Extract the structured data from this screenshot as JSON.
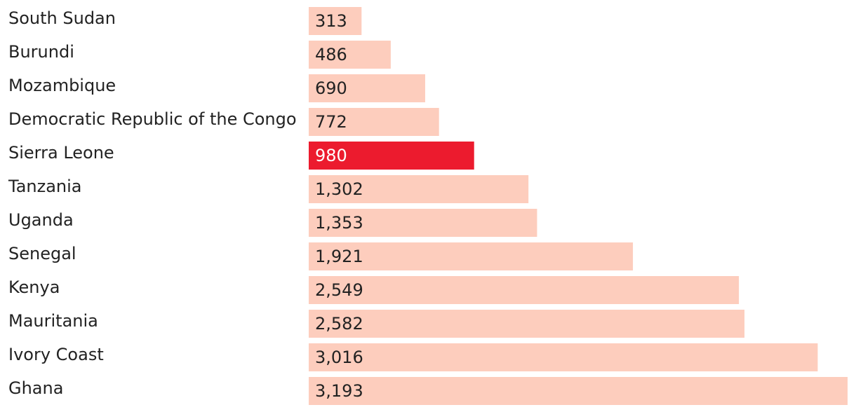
{
  "chart_data": {
    "type": "bar",
    "orientation": "horizontal",
    "categories": [
      "South Sudan",
      "Burundi",
      "Mozambique",
      "Democratic Republic of the Congo",
      "Sierra Leone",
      "Tanzania",
      "Uganda",
      "Senegal",
      "Kenya",
      "Mauritania",
      "Ivory Coast",
      "Ghana"
    ],
    "values": [
      313,
      486,
      690,
      772,
      980,
      1302,
      1353,
      1921,
      2549,
      2582,
      3016,
      3193
    ],
    "value_labels": [
      "313",
      "486",
      "690",
      "772",
      "980",
      "1,302",
      "1,353",
      "1,921",
      "2,549",
      "2,582",
      "3,016",
      "3,193"
    ],
    "highlight": "Sierra Leone",
    "xlim": [
      0,
      3193
    ],
    "grid": false,
    "legend": "none",
    "title": "",
    "xlabel": "",
    "ylabel": ""
  },
  "colors": {
    "bar": "#fdcdbd",
    "highlight_bar": "#ec1b2e",
    "label_text": "#222222",
    "value_text": "#222222",
    "highlight_value_text": "#ffffff"
  }
}
